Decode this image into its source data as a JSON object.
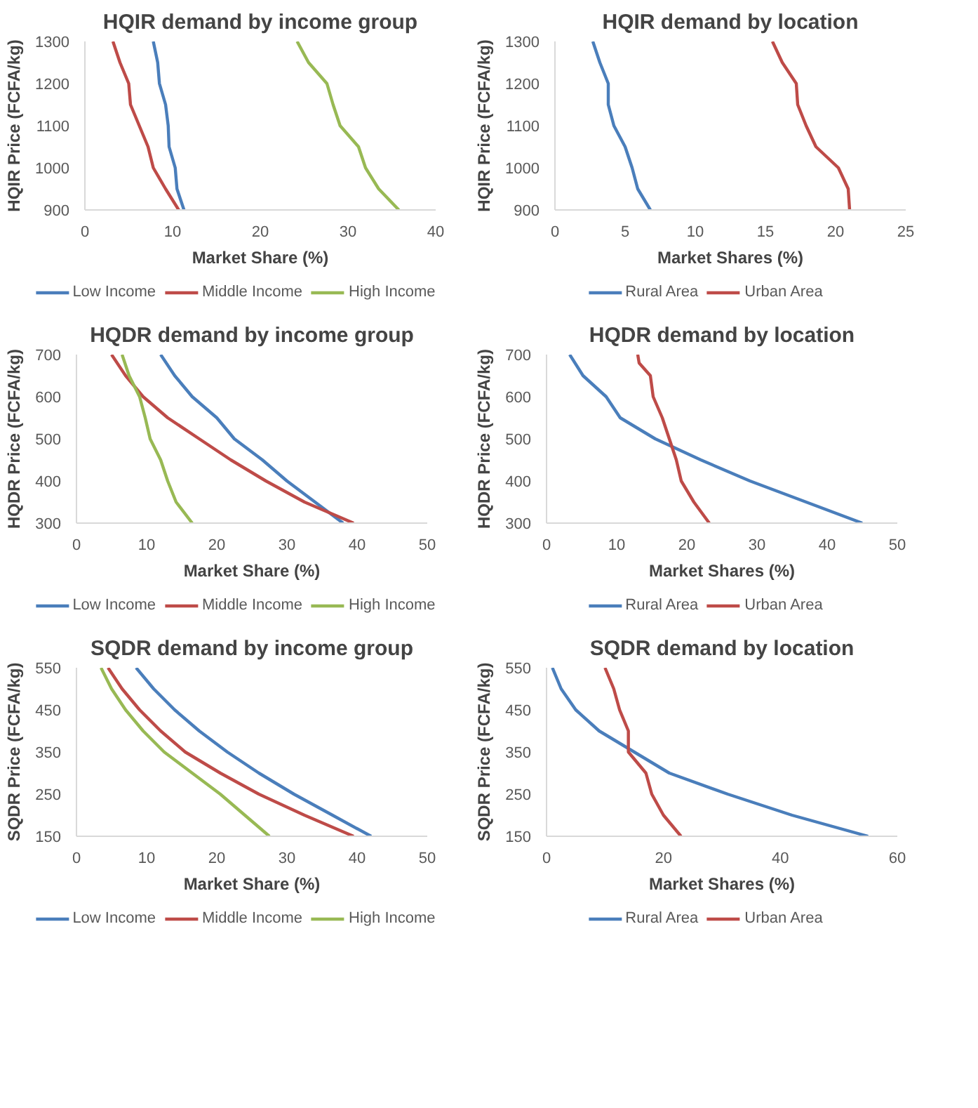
{
  "chart_data": [
    {
      "type": "line",
      "title": "HQIR demand by income group",
      "xlabel": "Market Share (%)",
      "ylabel": "HQIR Price (FCFA/kg)",
      "xlim": [
        0,
        40
      ],
      "xticks": [
        0,
        10,
        20,
        30,
        40
      ],
      "ylim": [
        900,
        1300
      ],
      "yticks": [
        900,
        1000,
        1100,
        1200,
        1300
      ],
      "legend": "bottom",
      "series": [
        {
          "name": "Low Income",
          "color": "#4a7ebb",
          "x": [
            7.8,
            8.3,
            8.5,
            9.2,
            9.5,
            9.6,
            10.3,
            10.5,
            11.3
          ],
          "values": [
            1300,
            1250,
            1200,
            1150,
            1100,
            1050,
            1000,
            950,
            900
          ]
        },
        {
          "name": "Middle Income",
          "color": "#be4b48",
          "x": [
            3.2,
            4.0,
            5.0,
            5.2,
            6.2,
            7.2,
            7.8,
            9.2,
            10.7
          ],
          "values": [
            1300,
            1250,
            1200,
            1150,
            1100,
            1050,
            1000,
            950,
            900
          ]
        },
        {
          "name": "High Income",
          "color": "#98b954",
          "x": [
            24.2,
            25.5,
            27.6,
            28.3,
            29.1,
            31.2,
            32.0,
            33.5,
            35.8
          ],
          "values": [
            1300,
            1250,
            1200,
            1150,
            1100,
            1050,
            1000,
            950,
            900
          ]
        }
      ]
    },
    {
      "type": "line",
      "title": "HQIR demand by location",
      "xlabel": "Market Shares (%)",
      "ylabel": "HQIR Price (FCFA/kg)",
      "xlim": [
        0,
        25
      ],
      "xticks": [
        0,
        5,
        10,
        15,
        20,
        25
      ],
      "ylim": [
        900,
        1300
      ],
      "yticks": [
        900,
        1000,
        1100,
        1200,
        1300
      ],
      "legend": "bottom",
      "series": [
        {
          "name": "Rural Area",
          "color": "#4a7ebb",
          "x": [
            2.7,
            3.2,
            3.8,
            3.8,
            4.2,
            5.0,
            5.5,
            5.9,
            6.8
          ],
          "values": [
            1300,
            1250,
            1200,
            1150,
            1100,
            1050,
            1000,
            950,
            900
          ]
        },
        {
          "name": "Urban Area",
          "color": "#be4b48",
          "x": [
            15.5,
            16.2,
            17.2,
            17.3,
            17.9,
            18.6,
            20.2,
            20.9,
            21.0
          ],
          "values": [
            1300,
            1250,
            1200,
            1150,
            1100,
            1050,
            1000,
            950,
            900
          ]
        }
      ]
    },
    {
      "type": "line",
      "title": "HQDR demand by income group",
      "xlabel": "Market Share (%)",
      "ylabel": "HQDR Price (FCFA/kg)",
      "xlim": [
        0,
        50
      ],
      "xticks": [
        0,
        10,
        20,
        30,
        40,
        50
      ],
      "ylim": [
        300,
        700
      ],
      "yticks": [
        300,
        400,
        500,
        600,
        700
      ],
      "legend": "bottom",
      "series": [
        {
          "name": "Low Income",
          "color": "#4a7ebb",
          "x": [
            12,
            14,
            16.5,
            20,
            22.5,
            26.5,
            30,
            34,
            38
          ],
          "values": [
            700,
            650,
            600,
            550,
            500,
            450,
            400,
            350,
            300
          ]
        },
        {
          "name": "Middle Income",
          "color": "#be4b48",
          "x": [
            5,
            7,
            9.5,
            13,
            17.5,
            22,
            27,
            32.5,
            39.5
          ],
          "values": [
            700,
            650,
            600,
            550,
            500,
            450,
            400,
            350,
            300
          ]
        },
        {
          "name": "High Income",
          "color": "#98b954",
          "x": [
            6.5,
            7.5,
            9,
            9.8,
            10.5,
            12,
            13,
            14.2,
            16.5
          ],
          "values": [
            700,
            650,
            600,
            550,
            500,
            450,
            400,
            350,
            300
          ]
        }
      ]
    },
    {
      "type": "line",
      "title": "HQDR demand by location",
      "xlabel": "Market Shares (%)",
      "ylabel": "HQDR Price (FCFA/kg)",
      "xlim": [
        0,
        50
      ],
      "xticks": [
        0,
        10,
        20,
        30,
        40,
        50
      ],
      "ylim": [
        300,
        700
      ],
      "yticks": [
        300,
        400,
        500,
        600,
        700
      ],
      "legend": "bottom",
      "series": [
        {
          "name": "Rural Area",
          "color": "#4a7ebb",
          "x": [
            3.3,
            5.2,
            8.5,
            10.5,
            15.5,
            22,
            29,
            37,
            45
          ],
          "values": [
            700,
            650,
            600,
            550,
            500,
            450,
            400,
            350,
            300
          ]
        },
        {
          "name": "Urban Area",
          "color": "#be4b48",
          "x": [
            13,
            13.2,
            14.8,
            15.2,
            16.5,
            17.5,
            18.5,
            19.2,
            21,
            23.2
          ],
          "values": [
            700,
            680,
            650,
            600,
            550,
            500,
            450,
            400,
            350,
            300
          ]
        }
      ]
    },
    {
      "type": "line",
      "title": "SQDR demand by income group",
      "xlabel": "Market Share (%)",
      "ylabel": "SQDR Price (FCFA/kg)",
      "xlim": [
        0,
        50
      ],
      "xticks": [
        0,
        10,
        20,
        30,
        40,
        50
      ],
      "ylim": [
        150,
        550
      ],
      "yticks": [
        150,
        250,
        350,
        450,
        550
      ],
      "legend": "bottom",
      "series": [
        {
          "name": "Low Income",
          "color": "#4a7ebb",
          "x": [
            8.5,
            11,
            14,
            17.5,
            21.5,
            26,
            31,
            36.5,
            42
          ],
          "values": [
            550,
            500,
            450,
            400,
            350,
            300,
            250,
            200,
            150
          ]
        },
        {
          "name": "Middle Income",
          "color": "#be4b48",
          "x": [
            4.5,
            6.5,
            9,
            12,
            15.5,
            20.5,
            26,
            32.5,
            39.5
          ],
          "values": [
            550,
            500,
            450,
            400,
            350,
            300,
            250,
            200,
            150
          ]
        },
        {
          "name": "High Income",
          "color": "#98b954",
          "x": [
            3.5,
            5,
            7,
            9.5,
            12.5,
            16.5,
            20.5,
            24,
            27.5
          ],
          "values": [
            550,
            500,
            450,
            400,
            350,
            300,
            250,
            200,
            150
          ]
        }
      ]
    },
    {
      "type": "line",
      "title": "SQDR demand by location",
      "xlabel": "Market Shares (%)",
      "ylabel": "SQDR Price (FCFA/kg)",
      "xlim": [
        0,
        60
      ],
      "xticks": [
        0,
        20,
        40,
        60
      ],
      "ylim": [
        150,
        550
      ],
      "yticks": [
        150,
        250,
        350,
        450,
        550
      ],
      "legend": "bottom",
      "series": [
        {
          "name": "Rural Area",
          "color": "#4a7ebb",
          "x": [
            1,
            2.5,
            5,
            9,
            15,
            21,
            31,
            42,
            55
          ],
          "values": [
            550,
            500,
            450,
            400,
            350,
            300,
            250,
            200,
            150
          ]
        },
        {
          "name": "Urban Area",
          "color": "#be4b48",
          "x": [
            10,
            11.5,
            12.5,
            14,
            14,
            14,
            17,
            18,
            20,
            23
          ],
          "values": [
            550,
            500,
            450,
            400,
            375,
            350,
            300,
            250,
            200,
            150
          ]
        }
      ]
    }
  ]
}
